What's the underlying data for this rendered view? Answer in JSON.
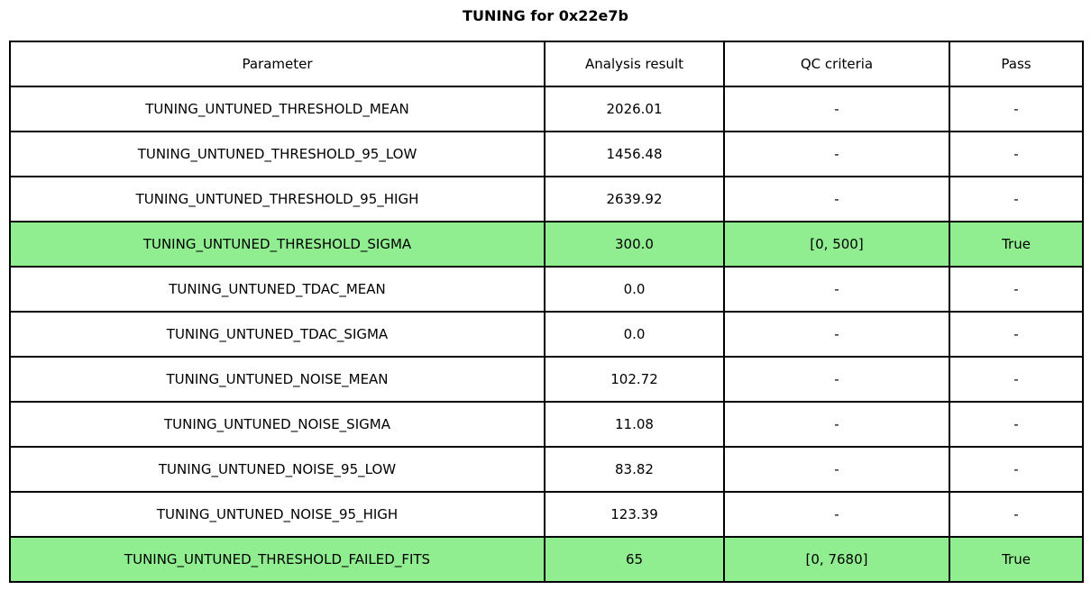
{
  "page_title": "TUNING for 0x22e7b",
  "colors": {
    "highlight_green": "#90ee90",
    "border": "#000000",
    "background": "#ffffff",
    "text": "#000000"
  },
  "chart_data": {
    "type": "table",
    "title": "TUNING for 0x22e7b",
    "columns": [
      "Parameter",
      "Analysis result",
      "QC criteria",
      "Pass"
    ],
    "rows": [
      {
        "parameter": "TUNING_UNTUNED_THRESHOLD_MEAN",
        "analysis_result": "2026.01",
        "qc_criteria": "-",
        "pass": "-",
        "highlight": false
      },
      {
        "parameter": "TUNING_UNTUNED_THRESHOLD_95_LOW",
        "analysis_result": "1456.48",
        "qc_criteria": "-",
        "pass": "-",
        "highlight": false
      },
      {
        "parameter": "TUNING_UNTUNED_THRESHOLD_95_HIGH",
        "analysis_result": "2639.92",
        "qc_criteria": "-",
        "pass": "-",
        "highlight": false
      },
      {
        "parameter": "TUNING_UNTUNED_THRESHOLD_SIGMA",
        "analysis_result": "300.0",
        "qc_criteria": "[0, 500]",
        "pass": "True",
        "highlight": true
      },
      {
        "parameter": "TUNING_UNTUNED_TDAC_MEAN",
        "analysis_result": "0.0",
        "qc_criteria": "-",
        "pass": "-",
        "highlight": false
      },
      {
        "parameter": "TUNING_UNTUNED_TDAC_SIGMA",
        "analysis_result": "0.0",
        "qc_criteria": "-",
        "pass": "-",
        "highlight": false
      },
      {
        "parameter": "TUNING_UNTUNED_NOISE_MEAN",
        "analysis_result": "102.72",
        "qc_criteria": "-",
        "pass": "-",
        "highlight": false
      },
      {
        "parameter": "TUNING_UNTUNED_NOISE_SIGMA",
        "analysis_result": "11.08",
        "qc_criteria": "-",
        "pass": "-",
        "highlight": false
      },
      {
        "parameter": "TUNING_UNTUNED_NOISE_95_LOW",
        "analysis_result": "83.82",
        "qc_criteria": "-",
        "pass": "-",
        "highlight": false
      },
      {
        "parameter": "TUNING_UNTUNED_NOISE_95_HIGH",
        "analysis_result": "123.39",
        "qc_criteria": "-",
        "pass": "-",
        "highlight": false
      },
      {
        "parameter": "TUNING_UNTUNED_THRESHOLD_FAILED_FITS",
        "analysis_result": "65",
        "qc_criteria": "[0, 7680]",
        "pass": "True",
        "highlight": true
      }
    ],
    "layout": {
      "grid": "full-borders",
      "highlighted_rows_color": "#90ee90",
      "title_position": "top-center"
    }
  }
}
